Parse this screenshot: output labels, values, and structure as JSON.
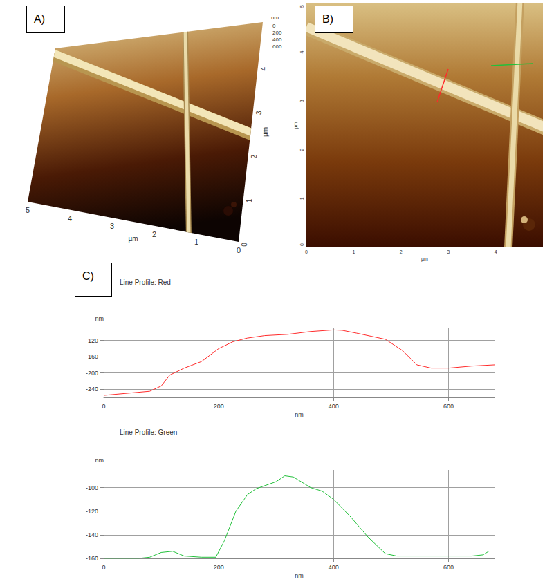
{
  "panel_a": {
    "label": "A)",
    "x_label": "µm",
    "xlim": [
      5,
      0
    ],
    "x_ticks": [
      5,
      4,
      3,
      2,
      1,
      0
    ],
    "y_label": "µm",
    "ylim": [
      0,
      5
    ],
    "y_ticks": [
      0,
      1,
      2,
      3,
      4
    ],
    "z_label": "nm",
    "zlim": [
      0,
      600
    ],
    "z_ticks": [
      0,
      200,
      400,
      600
    ]
  },
  "panel_b": {
    "label": "B)",
    "x_label": "µm",
    "xlim": [
      0,
      5
    ],
    "x_ticks": [
      0,
      1,
      2,
      3,
      4
    ],
    "y_label": "µm",
    "ylim": [
      0,
      5
    ],
    "y_ticks": [
      0,
      1,
      2,
      3,
      4,
      5
    ],
    "lines": [
      {
        "color": "#ff2a2a"
      },
      {
        "color": "#22c03a"
      }
    ]
  },
  "panel_c": {
    "label": "C)"
  },
  "chart_data": [
    {
      "type": "line",
      "title": "Line Profile: Red",
      "x_label": "nm",
      "y_label": "nm",
      "x": [
        0,
        80,
        100,
        115,
        140,
        170,
        200,
        225,
        250,
        280,
        320,
        360,
        400,
        415,
        440,
        490,
        520,
        545,
        570,
        600,
        640,
        680
      ],
      "values": [
        -255,
        -245,
        -232,
        -205,
        -188,
        -172,
        -140,
        -123,
        -114,
        -108,
        -105,
        -98,
        -94,
        -95,
        -102,
        -117,
        -145,
        -180,
        -188,
        -188,
        -183,
        -180
      ],
      "color": "#ff2a2a",
      "xlim": [
        0,
        680
      ],
      "ylim": [
        -260,
        -90
      ],
      "xticks": [
        0,
        200,
        400,
        600
      ],
      "yticks": [
        -240,
        -200,
        -160,
        -120
      ],
      "grid": true
    },
    {
      "type": "line",
      "title": "Line Profile: Green",
      "x_label": "nm",
      "y_label": "nm",
      "x": [
        0,
        60,
        80,
        100,
        120,
        140,
        170,
        195,
        210,
        230,
        250,
        265,
        300,
        315,
        330,
        360,
        380,
        400,
        430,
        460,
        490,
        510,
        640,
        660,
        670
      ],
      "values": [
        -160,
        -160,
        -159,
        -155,
        -154,
        -158,
        -159,
        -159,
        -145,
        -120,
        -106,
        -101,
        -95,
        -90,
        -91,
        -100,
        -103,
        -110,
        -125,
        -142,
        -156,
        -158,
        -158,
        -157,
        -154
      ],
      "color": "#22c03a",
      "xlim": [
        0,
        680
      ],
      "ylim": [
        -160,
        -85
      ],
      "xticks": [
        0,
        200,
        400,
        600
      ],
      "yticks": [
        -160,
        -140,
        -120,
        -100
      ],
      "grid": true
    }
  ]
}
